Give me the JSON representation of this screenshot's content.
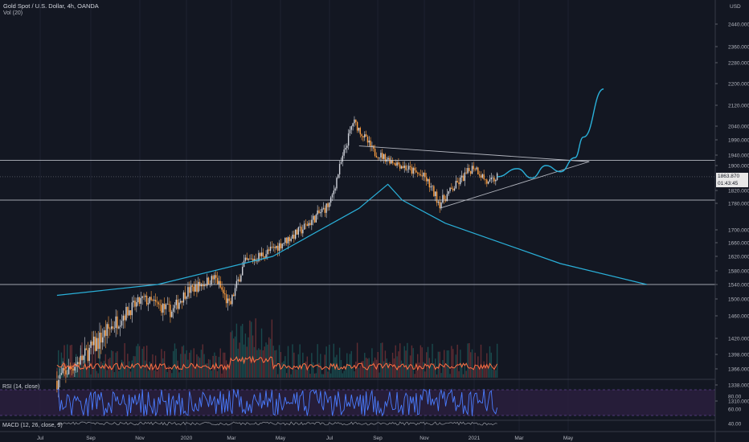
{
  "header": {
    "symbol_title": "Gold Spot / U.S. Dollar, 4h, OANDA",
    "volume_indicator": "Vol (20)",
    "currency": "USD"
  },
  "price_scale": {
    "last_price": "1863.870",
    "countdown": "01:43:45"
  },
  "indicators": {
    "rsi_label": "RSI (14, close)",
    "macd_label": "MACD (12, 26, close, 9)"
  },
  "colors": {
    "background": "#131722",
    "candle_up": "#d1d4dc",
    "candle_down": "#ff9f40",
    "annotation": "#2ab0d9",
    "rsi_line": "#4a7cff",
    "rsi_band": "#2a1f3d",
    "horizontal_line": "#d1d4dc",
    "volume_ma": "#ff7043"
  },
  "chart_data": {
    "type": "candlestick",
    "title": "Gold Spot / U.S. Dollar, 4h, OANDA",
    "y_axis_ticks": [
      "2440.000",
      "2360.000",
      "2280.000",
      "2200.000",
      "2120.000",
      "2040.000",
      "1990.000",
      "1940.000",
      "1900.000",
      "1820.000",
      "1780.000",
      "1700.000",
      "1660.000",
      "1620.000",
      "1580.000",
      "1540.000",
      "1500.000",
      "1460.000",
      "1420.000",
      "1398.000",
      "1366.000",
      "1338.000",
      "1310.000"
    ],
    "x_axis_ticks": [
      "Jul",
      "Sep",
      "Nov",
      "2020",
      "Mar",
      "May",
      "Jul",
      "Sep",
      "Nov",
      "2021",
      "Mar",
      "May"
    ],
    "rsi_ticks": [
      "80.00",
      "60.00",
      "40.00"
    ],
    "price_trace": [
      [
        2019.55,
        1345
      ],
      [
        2019.7,
        1420
      ],
      [
        2019.85,
        1500
      ],
      [
        2019.95,
        1470
      ],
      [
        2020.0,
        1520
      ],
      [
        2020.1,
        1560
      ],
      [
        2020.15,
        1480
      ],
      [
        2020.2,
        1600
      ],
      [
        2020.3,
        1640
      ],
      [
        2020.4,
        1700
      ],
      [
        2020.5,
        1780
      ],
      [
        2020.58,
        2060
      ],
      [
        2020.65,
        1950
      ],
      [
        2020.75,
        1900
      ],
      [
        2020.83,
        1860
      ],
      [
        2020.88,
        1780
      ],
      [
        2020.95,
        1850
      ],
      [
        2021.0,
        1900
      ],
      [
        2021.05,
        1840
      ],
      [
        2021.08,
        1864
      ]
    ],
    "horizontal_levels": [
      1920,
      1790,
      1540
    ],
    "triangle": {
      "upper_start": [
        2020.6,
        1970
      ],
      "lower_start": [
        2020.88,
        1765
      ],
      "apex": [
        2021.4,
        1915
      ]
    },
    "projection": [
      [
        2021.08,
        1864
      ],
      [
        2021.15,
        1890
      ],
      [
        2021.2,
        1860
      ],
      [
        2021.25,
        1900
      ],
      [
        2021.3,
        1880
      ],
      [
        2021.35,
        1930
      ],
      [
        2021.38,
        2000
      ],
      [
        2021.45,
        2180
      ]
    ],
    "long_ma": [
      [
        2019.55,
        1510
      ],
      [
        2019.9,
        1540
      ],
      [
        2020.3,
        1620
      ],
      [
        2020.6,
        1765
      ],
      [
        2020.7,
        1840
      ],
      [
        2020.75,
        1790
      ],
      [
        2020.9,
        1720
      ],
      [
        2021.3,
        1600
      ],
      [
        2021.6,
        1540
      ]
    ]
  }
}
